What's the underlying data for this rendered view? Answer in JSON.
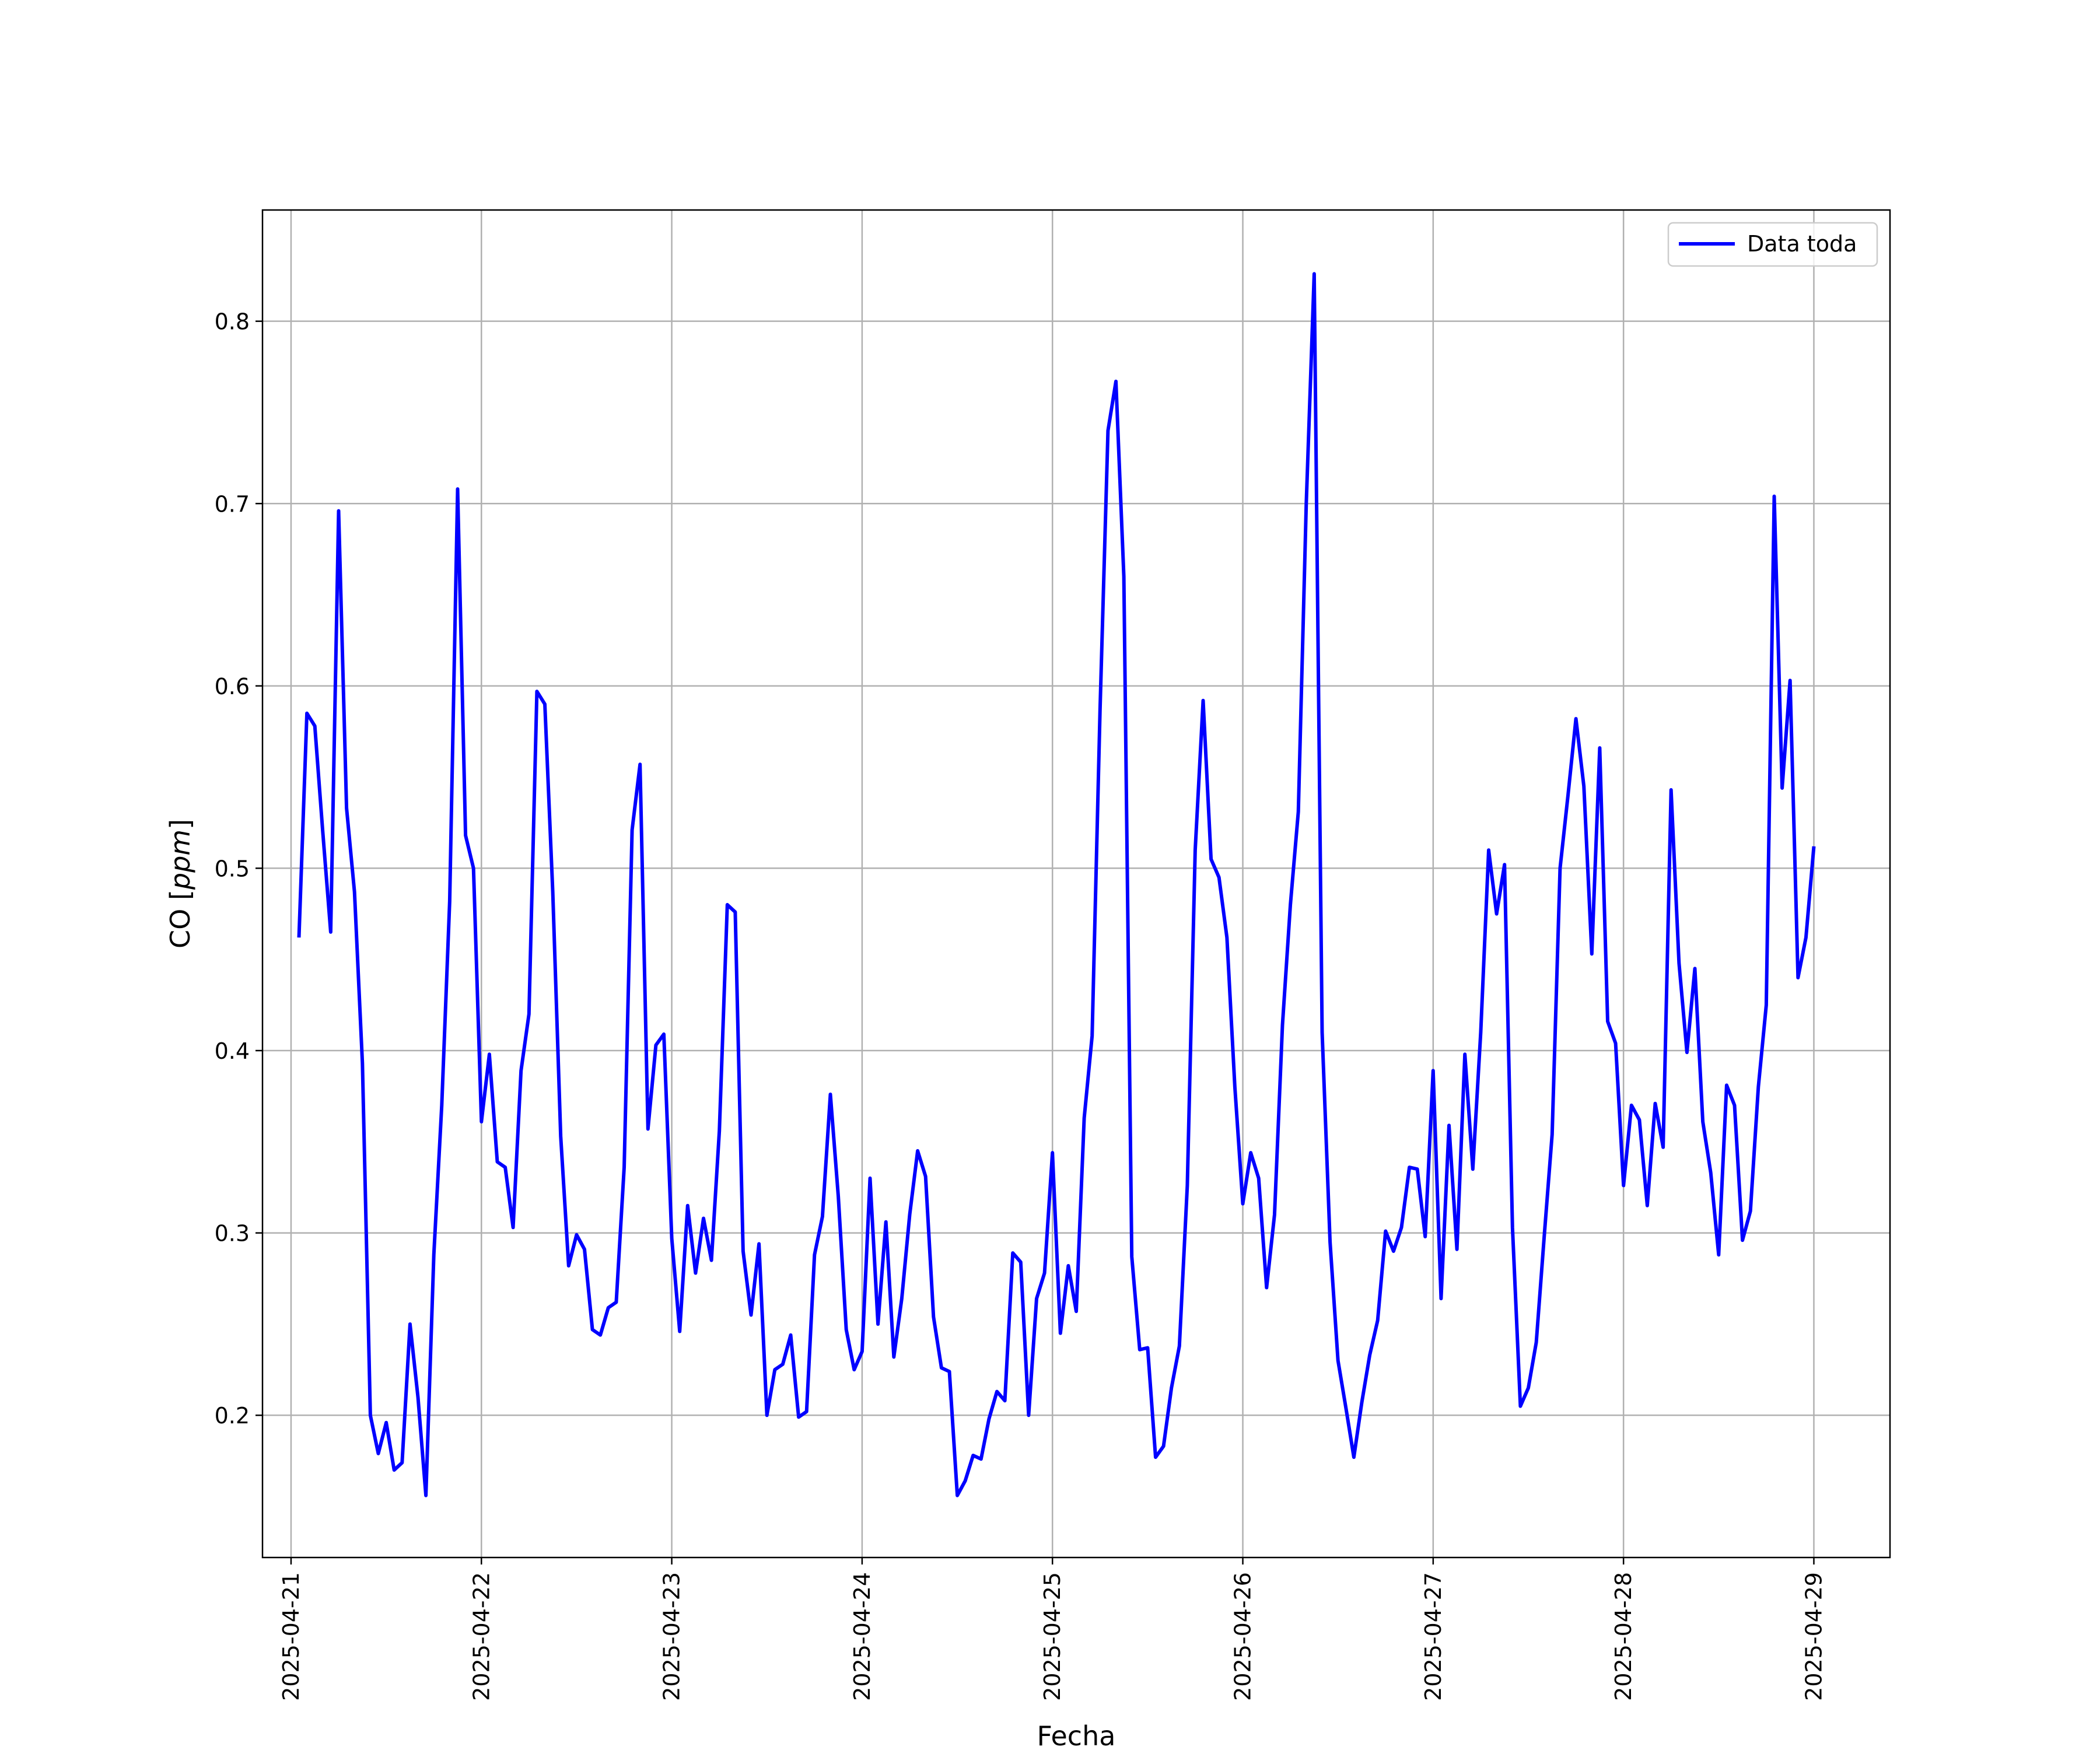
{
  "chart_data": {
    "type": "line",
    "xlabel": "Fecha",
    "ylabel_prefix": "CO [",
    "ylabel_unit": "ppm",
    "ylabel_suffix": "]",
    "xlim": [
      "2025-04-20 20:24",
      "2025-04-29 09:36"
    ],
    "ylim": [
      0.122,
      0.861
    ],
    "grid": true,
    "legend": {
      "placement": "top-right",
      "entries": [
        "Data toda"
      ]
    },
    "xticks": [
      "2025-04-21",
      "2025-04-22",
      "2025-04-23",
      "2025-04-24",
      "2025-04-25",
      "2025-04-26",
      "2025-04-27",
      "2025-04-28",
      "2025-04-29"
    ],
    "yticks": [
      "0.2",
      "0.3",
      "0.4",
      "0.5",
      "0.6",
      "0.7",
      "0.8"
    ],
    "colors": {
      "series": "#0000ff",
      "grid": "#b0b0b0",
      "legend_border": "#cccccc"
    },
    "series": [
      {
        "name": "Data toda",
        "x": [
          "2025-04-21 01:00",
          "2025-04-21 02:00",
          "2025-04-21 03:00",
          "2025-04-21 04:00",
          "2025-04-21 05:00",
          "2025-04-21 06:00",
          "2025-04-21 07:00",
          "2025-04-21 08:00",
          "2025-04-21 09:00",
          "2025-04-21 10:00",
          "2025-04-21 11:00",
          "2025-04-21 12:00",
          "2025-04-21 13:00",
          "2025-04-21 14:00",
          "2025-04-21 15:00",
          "2025-04-21 16:00",
          "2025-04-21 17:00",
          "2025-04-21 18:00",
          "2025-04-21 19:00",
          "2025-04-21 20:00",
          "2025-04-21 21:00",
          "2025-04-21 22:00",
          "2025-04-21 23:00",
          "2025-04-22 00:00",
          "2025-04-22 01:00",
          "2025-04-22 02:00",
          "2025-04-22 03:00",
          "2025-04-22 04:00",
          "2025-04-22 05:00",
          "2025-04-22 06:00",
          "2025-04-22 07:00",
          "2025-04-22 08:00",
          "2025-04-22 09:00",
          "2025-04-22 10:00",
          "2025-04-22 11:00",
          "2025-04-22 12:00",
          "2025-04-22 13:00",
          "2025-04-22 14:00",
          "2025-04-22 15:00",
          "2025-04-22 16:00",
          "2025-04-22 17:00",
          "2025-04-22 18:00",
          "2025-04-22 19:00",
          "2025-04-22 20:00",
          "2025-04-22 21:00",
          "2025-04-22 22:00",
          "2025-04-22 23:00",
          "2025-04-23 00:00",
          "2025-04-23 01:00",
          "2025-04-23 02:00",
          "2025-04-23 03:00",
          "2025-04-23 04:00",
          "2025-04-23 05:00",
          "2025-04-23 06:00",
          "2025-04-23 07:00",
          "2025-04-23 08:00",
          "2025-04-23 09:00",
          "2025-04-23 10:00",
          "2025-04-23 11:00",
          "2025-04-23 12:00",
          "2025-04-23 13:00",
          "2025-04-23 14:00",
          "2025-04-23 15:00",
          "2025-04-23 16:00",
          "2025-04-23 17:00",
          "2025-04-23 18:00",
          "2025-04-23 19:00",
          "2025-04-23 20:00",
          "2025-04-23 21:00",
          "2025-04-23 22:00",
          "2025-04-23 23:00",
          "2025-04-24 00:00",
          "2025-04-24 01:00",
          "2025-04-24 02:00",
          "2025-04-24 03:00",
          "2025-04-24 04:00",
          "2025-04-24 05:00",
          "2025-04-24 06:00",
          "2025-04-24 07:00",
          "2025-04-24 08:00",
          "2025-04-24 09:00",
          "2025-04-24 10:00",
          "2025-04-24 11:00",
          "2025-04-24 12:00",
          "2025-04-24 13:00",
          "2025-04-24 14:00",
          "2025-04-24 15:00",
          "2025-04-24 16:00",
          "2025-04-24 17:00",
          "2025-04-24 18:00",
          "2025-04-24 19:00",
          "2025-04-24 20:00",
          "2025-04-24 21:00",
          "2025-04-24 22:00",
          "2025-04-24 23:00",
          "2025-04-25 00:00",
          "2025-04-25 01:00",
          "2025-04-25 02:00",
          "2025-04-25 03:00",
          "2025-04-25 04:00",
          "2025-04-25 05:00",
          "2025-04-25 06:00",
          "2025-04-25 07:00",
          "2025-04-25 08:00",
          "2025-04-25 09:00",
          "2025-04-25 10:00",
          "2025-04-25 11:00",
          "2025-04-25 12:00",
          "2025-04-25 13:00",
          "2025-04-25 14:00",
          "2025-04-25 15:00",
          "2025-04-25 16:00",
          "2025-04-25 17:00",
          "2025-04-25 18:00",
          "2025-04-25 19:00",
          "2025-04-25 20:00",
          "2025-04-25 21:00",
          "2025-04-25 22:00",
          "2025-04-25 23:00",
          "2025-04-26 00:00",
          "2025-04-26 01:00",
          "2025-04-26 02:00",
          "2025-04-26 03:00",
          "2025-04-26 04:00",
          "2025-04-26 05:00",
          "2025-04-26 06:00",
          "2025-04-26 07:00",
          "2025-04-26 08:00",
          "2025-04-26 09:00",
          "2025-04-26 10:00",
          "2025-04-26 11:00",
          "2025-04-26 12:00",
          "2025-04-26 13:00",
          "2025-04-26 14:00",
          "2025-04-26 15:00",
          "2025-04-26 16:00",
          "2025-04-26 17:00",
          "2025-04-26 18:00",
          "2025-04-26 19:00",
          "2025-04-26 20:00",
          "2025-04-26 21:00",
          "2025-04-26 22:00",
          "2025-04-26 23:00",
          "2025-04-27 00:00",
          "2025-04-27 01:00",
          "2025-04-27 02:00",
          "2025-04-27 03:00",
          "2025-04-27 04:00",
          "2025-04-27 05:00",
          "2025-04-27 06:00",
          "2025-04-27 07:00",
          "2025-04-27 08:00",
          "2025-04-27 09:00",
          "2025-04-27 10:00",
          "2025-04-27 11:00",
          "2025-04-27 12:00",
          "2025-04-27 13:00",
          "2025-04-27 14:00",
          "2025-04-27 15:00",
          "2025-04-27 16:00",
          "2025-04-27 17:00",
          "2025-04-27 18:00",
          "2025-04-27 19:00",
          "2025-04-27 20:00",
          "2025-04-27 21:00",
          "2025-04-27 22:00",
          "2025-04-27 23:00",
          "2025-04-28 00:00",
          "2025-04-28 01:00",
          "2025-04-28 02:00",
          "2025-04-28 03:00",
          "2025-04-28 04:00",
          "2025-04-28 05:00",
          "2025-04-28 06:00",
          "2025-04-28 07:00",
          "2025-04-28 08:00",
          "2025-04-28 09:00",
          "2025-04-28 10:00",
          "2025-04-28 11:00",
          "2025-04-28 12:00",
          "2025-04-28 13:00",
          "2025-04-28 14:00",
          "2025-04-28 15:00",
          "2025-04-28 16:00",
          "2025-04-28 17:00",
          "2025-04-28 18:00",
          "2025-04-28 19:00",
          "2025-04-28 20:00",
          "2025-04-28 21:00",
          "2025-04-28 22:00",
          "2025-04-28 23:00",
          "2025-04-29 00:00"
        ],
        "values": [
          0.462,
          0.585,
          0.578,
          0.52,
          0.465,
          0.696,
          0.533,
          0.487,
          0.393,
          0.2,
          0.179,
          0.196,
          0.17,
          0.174,
          0.25,
          0.21,
          0.156,
          0.288,
          0.37,
          0.482,
          0.708,
          0.518,
          0.5,
          0.361,
          0.398,
          0.339,
          0.336,
          0.303,
          0.389,
          0.42,
          0.597,
          0.59,
          0.487,
          0.353,
          0.282,
          0.299,
          0.291,
          0.247,
          0.244,
          0.259,
          0.262,
          0.336,
          0.521,
          0.557,
          0.357,
          0.403,
          0.409,
          0.297,
          0.246,
          0.315,
          0.278,
          0.308,
          0.285,
          0.356,
          0.48,
          0.476,
          0.29,
          0.255,
          0.294,
          0.2,
          0.225,
          0.228,
          0.244,
          0.199,
          0.202,
          0.288,
          0.309,
          0.376,
          0.32,
          0.247,
          0.225,
          0.235,
          0.33,
          0.25,
          0.306,
          0.232,
          0.264,
          0.31,
          0.345,
          0.331,
          0.254,
          0.226,
          0.224,
          0.156,
          0.164,
          0.178,
          0.176,
          0.198,
          0.213,
          0.208,
          0.289,
          0.284,
          0.2,
          0.264,
          0.278,
          0.344,
          0.245,
          0.282,
          0.257,
          0.363,
          0.408,
          0.587,
          0.74,
          0.767,
          0.66,
          0.287,
          0.236,
          0.237,
          0.177,
          0.183,
          0.215,
          0.238,
          0.326,
          0.51,
          0.592,
          0.505,
          0.495,
          0.462,
          0.38,
          0.316,
          0.344,
          0.33,
          0.27,
          0.31,
          0.414,
          0.48,
          0.531,
          0.7,
          0.826,
          0.41,
          0.295,
          0.23,
          0.204,
          0.177,
          0.207,
          0.233,
          0.252,
          0.301,
          0.29,
          0.303,
          0.336,
          0.335,
          0.298,
          0.389,
          0.264,
          0.359,
          0.291,
          0.398,
          0.335,
          0.41,
          0.51,
          0.475,
          0.502,
          0.303,
          0.205,
          0.215,
          0.24,
          0.298,
          0.354,
          0.5,
          0.54,
          0.582,
          0.545,
          0.453,
          0.566,
          0.416,
          0.404,
          0.326,
          0.37,
          0.362,
          0.315,
          0.371,
          0.347,
          0.543,
          0.448,
          0.399,
          0.445,
          0.361,
          0.333,
          0.288,
          0.381,
          0.37,
          0.296,
          0.312,
          0.38,
          0.425,
          0.704,
          0.544,
          0.603,
          0.44,
          0.462,
          0.512
        ]
      }
    ]
  }
}
